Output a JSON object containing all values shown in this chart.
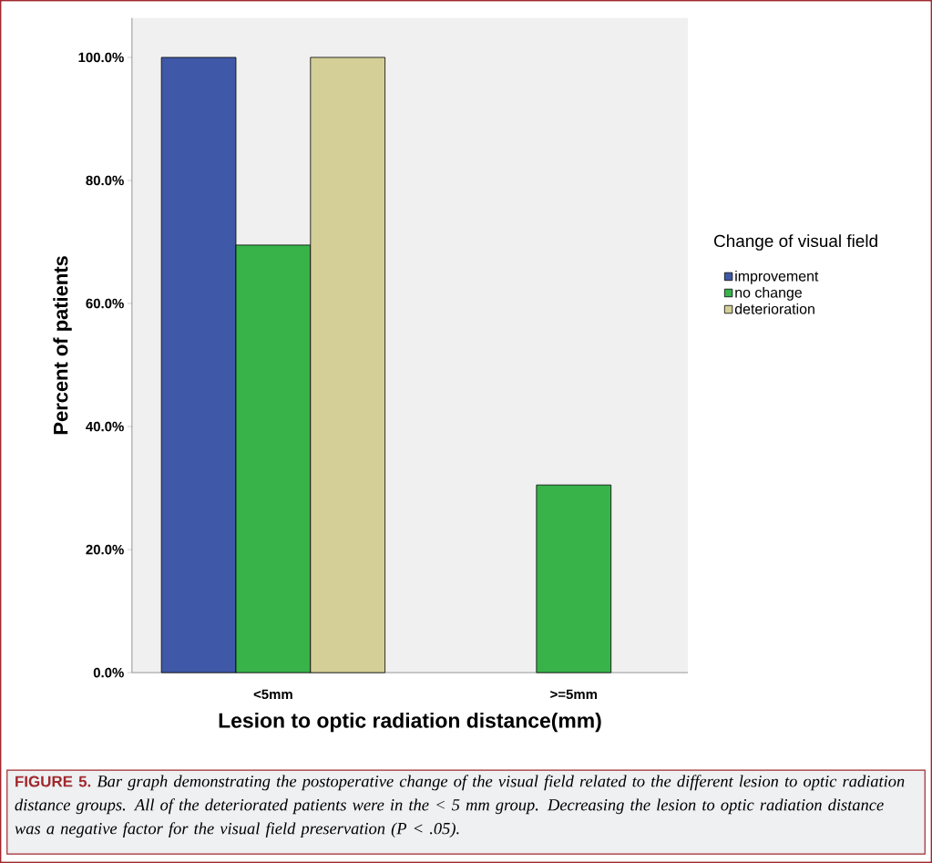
{
  "chart_data": {
    "type": "bar",
    "xlabel": "Lesion to optic radiation distance(mm)",
    "ylabel": "Percent of patients",
    "categories": [
      "<5mm",
      ">=5mm"
    ],
    "series": [
      {
        "name": "improvement",
        "color": "#3f58a7",
        "values": [
          100,
          0
        ]
      },
      {
        "name": "no change",
        "color": "#37b34a",
        "values": [
          69.5,
          30.5
        ]
      },
      {
        "name": "deterioration",
        "color": "#d3cf97",
        "values": [
          100,
          0
        ]
      }
    ],
    "legend_title": "Change of visual field",
    "legend": "right",
    "ylim": [
      0,
      106.4
    ],
    "yticks": [
      {
        "value": 0,
        "label": "0.0%"
      },
      {
        "value": 20,
        "label": "20.0%"
      },
      {
        "value": 40,
        "label": "40.0%"
      },
      {
        "value": 60,
        "label": "60.0%"
      },
      {
        "value": 80,
        "label": "80.0%"
      },
      {
        "value": 100,
        "label": "100.0%"
      }
    ],
    "annotations": [
      "FIGURE 5.",
      "Bar graph demonstrating the postoperative change of the visual field related to the different lesion to optic radiation distance groups. All of the deteriorated patients were in the < 5 mm group. Decreasing the lesion to optic radiation distance was a negative factor for the visual field preservation (P < .05)."
    ]
  }
}
